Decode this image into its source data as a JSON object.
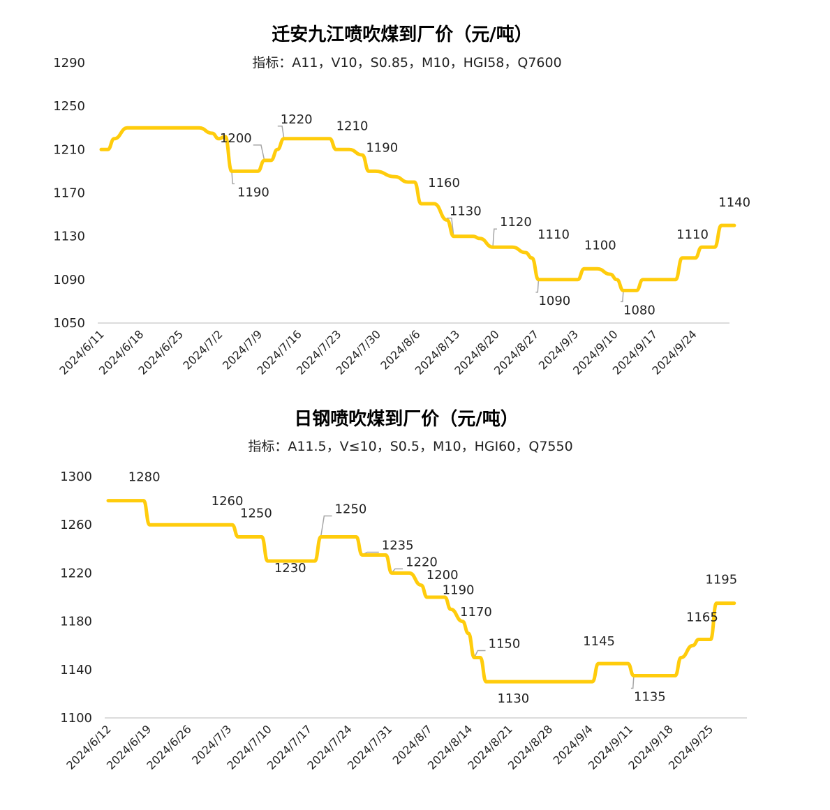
{
  "chart_data": [
    {
      "type": "line",
      "title": "迁安九江喷吹煤到厂价（元/吨）",
      "subtitle": "指标：A11，V10，S0.85，M10，HGI58，Q7600",
      "ylim": [
        1050,
        1290
      ],
      "yticks": [
        1050,
        1090,
        1130,
        1170,
        1210,
        1250,
        1290
      ],
      "xticks": [
        "2024/6/11",
        "2024/6/18",
        "2024/6/25",
        "2024/7/2",
        "2024/7/9",
        "2024/7/16",
        "2024/7/23",
        "2024/7/30",
        "2024/8/6",
        "2024/8/13",
        "2024/8/20",
        "2024/8/27",
        "2024/9/3",
        "2024/9/10",
        "2024/9/17",
        "2024/9/24"
      ],
      "series": [
        {
          "name": "迁安九江喷吹煤到厂价",
          "color": "#FFCC0C",
          "points": [
            [
              0,
              1210
            ],
            [
              1,
              1210
            ],
            [
              2,
              1220
            ],
            [
              4,
              1230
            ],
            [
              6,
              1230
            ],
            [
              8,
              1230
            ],
            [
              10,
              1230
            ],
            [
              12,
              1230
            ],
            [
              14,
              1230
            ],
            [
              15,
              1230
            ],
            [
              17,
              1225
            ],
            [
              18,
              1220
            ],
            [
              19,
              1222
            ],
            [
              20,
              1190
            ],
            [
              23,
              1190
            ],
            [
              24,
              1190
            ],
            [
              25,
              1200
            ],
            [
              26,
              1200
            ],
            [
              27,
              1210
            ],
            [
              28,
              1220
            ],
            [
              30,
              1220
            ],
            [
              34,
              1220
            ],
            [
              35,
              1220
            ],
            [
              36,
              1210
            ],
            [
              38,
              1210
            ],
            [
              40,
              1205
            ],
            [
              41,
              1190
            ],
            [
              42,
              1190
            ],
            [
              45,
              1185
            ],
            [
              47,
              1180
            ],
            [
              48,
              1180
            ],
            [
              49,
              1160
            ],
            [
              51,
              1160
            ],
            [
              53,
              1145
            ],
            [
              54,
              1130
            ],
            [
              56,
              1130
            ],
            [
              57,
              1130
            ],
            [
              58,
              1128
            ],
            [
              60,
              1120
            ],
            [
              62,
              1120
            ],
            [
              63,
              1120
            ],
            [
              65,
              1115
            ],
            [
              66,
              1110
            ],
            [
              67,
              1090
            ],
            [
              69,
              1090
            ],
            [
              72,
              1090
            ],
            [
              73,
              1090
            ],
            [
              74,
              1100
            ],
            [
              75,
              1100
            ],
            [
              76,
              1100
            ],
            [
              78,
              1095
            ],
            [
              79,
              1090
            ],
            [
              80,
              1080
            ],
            [
              81,
              1080
            ],
            [
              82,
              1080
            ],
            [
              83,
              1090
            ],
            [
              85,
              1090
            ],
            [
              87,
              1090
            ],
            [
              88,
              1090
            ],
            [
              89,
              1110
            ],
            [
              90,
              1110
            ],
            [
              91,
              1110
            ],
            [
              92,
              1120
            ],
            [
              94,
              1120
            ],
            [
              95,
              1140
            ],
            [
              96,
              1140
            ],
            [
              97,
              1140
            ]
          ]
        }
      ],
      "labels": [
        {
          "text": "1220",
          "x": 28,
          "y": 1220
        },
        {
          "text": "1200",
          "x": 25,
          "y": 1200
        },
        {
          "text": "1190",
          "x": 20,
          "y": 1190
        },
        {
          "text": "1210",
          "x": 36,
          "y": 1210
        },
        {
          "text": "1190",
          "x": 41,
          "y": 1190
        },
        {
          "text": "1160",
          "x": 49,
          "y": 1160
        },
        {
          "text": "1130",
          "x": 54,
          "y": 1130
        },
        {
          "text": "1120",
          "x": 60,
          "y": 1120
        },
        {
          "text": "1110",
          "x": 66,
          "y": 1110
        },
        {
          "text": "1090",
          "x": 67,
          "y": 1090
        },
        {
          "text": "1100",
          "x": 74,
          "y": 1100
        },
        {
          "text": "1080",
          "x": 80,
          "y": 1080
        },
        {
          "text": "1110",
          "x": 89,
          "y": 1110
        },
        {
          "text": "1140",
          "x": 95,
          "y": 1140
        }
      ]
    },
    {
      "type": "line",
      "title": "日钢喷吹煤到厂价（元/吨）",
      "subtitle": "指标：A11.5，V≤10，S0.5，M10，HGI60，Q7550",
      "ylim": [
        1100,
        1300
      ],
      "yticks": [
        1100,
        1140,
        1180,
        1220,
        1260,
        1300
      ],
      "xticks": [
        "2024/6/12",
        "2024/6/19",
        "2024/6/26",
        "2024/7/3",
        "2024/7/10",
        "2024/7/17",
        "2024/7/24",
        "2024/7/31",
        "2024/8/7",
        "2024/8/14",
        "2024/8/21",
        "2024/8/28",
        "2024/9/4",
        "2024/9/11",
        "2024/9/18",
        "2024/9/25"
      ],
      "series": [
        {
          "name": "日钢喷吹煤到厂价",
          "color": "#FFCC0C",
          "points": [
            [
              0,
              1280
            ],
            [
              5,
              1280
            ],
            [
              6,
              1280
            ],
            [
              7,
              1260
            ],
            [
              10,
              1260
            ],
            [
              20,
              1260
            ],
            [
              21,
              1260
            ],
            [
              22,
              1250
            ],
            [
              24,
              1250
            ],
            [
              26,
              1250
            ],
            [
              27,
              1230
            ],
            [
              29,
              1230
            ],
            [
              34,
              1230
            ],
            [
              35,
              1230
            ],
            [
              36,
              1250
            ],
            [
              41,
              1250
            ],
            [
              42,
              1250
            ],
            [
              43,
              1235
            ],
            [
              46,
              1235
            ],
            [
              47,
              1235
            ],
            [
              48,
              1220
            ],
            [
              50,
              1220
            ],
            [
              51,
              1220
            ],
            [
              53,
              1210
            ],
            [
              54,
              1200
            ],
            [
              56,
              1200
            ],
            [
              57,
              1200
            ],
            [
              58,
              1190
            ],
            [
              60,
              1180
            ],
            [
              61,
              1170
            ],
            [
              62,
              1150
            ],
            [
              63,
              1150
            ],
            [
              64,
              1130
            ],
            [
              66,
              1130
            ],
            [
              79,
              1130
            ],
            [
              81,
              1130
            ],
            [
              82,
              1130
            ],
            [
              83,
              1145
            ],
            [
              84,
              1145
            ],
            [
              87,
              1145
            ],
            [
              88,
              1145
            ],
            [
              89,
              1135
            ],
            [
              90,
              1135
            ],
            [
              93,
              1135
            ],
            [
              95,
              1135
            ],
            [
              96,
              1135
            ],
            [
              97,
              1150
            ],
            [
              99,
              1160
            ],
            [
              100,
              1165
            ],
            [
              102,
              1165
            ],
            [
              103,
              1195
            ],
            [
              104,
              1195
            ],
            [
              106,
              1195
            ]
          ]
        }
      ],
      "labels": [
        {
          "text": "1280",
          "x": 6,
          "y": 1280
        },
        {
          "text": "1260",
          "x": 21,
          "y": 1260
        },
        {
          "text": "1250",
          "x": 24,
          "y": 1250
        },
        {
          "text": "1230",
          "x": 34,
          "y": 1230
        },
        {
          "text": "1250",
          "x": 36,
          "y": 1250
        },
        {
          "text": "1235",
          "x": 43,
          "y": 1235
        },
        {
          "text": "1220",
          "x": 48,
          "y": 1220
        },
        {
          "text": "1200",
          "x": 56,
          "y": 1200
        },
        {
          "text": "1190",
          "x": 58,
          "y": 1190
        },
        {
          "text": "1170",
          "x": 61,
          "y": 1170
        },
        {
          "text": "1150",
          "x": 62,
          "y": 1150
        },
        {
          "text": "1130",
          "x": 64,
          "y": 1130
        },
        {
          "text": "1145",
          "x": 83,
          "y": 1145
        },
        {
          "text": "1135",
          "x": 89,
          "y": 1135
        },
        {
          "text": "1165",
          "x": 100,
          "y": 1165
        },
        {
          "text": "1195",
          "x": 103,
          "y": 1195
        }
      ]
    }
  ]
}
